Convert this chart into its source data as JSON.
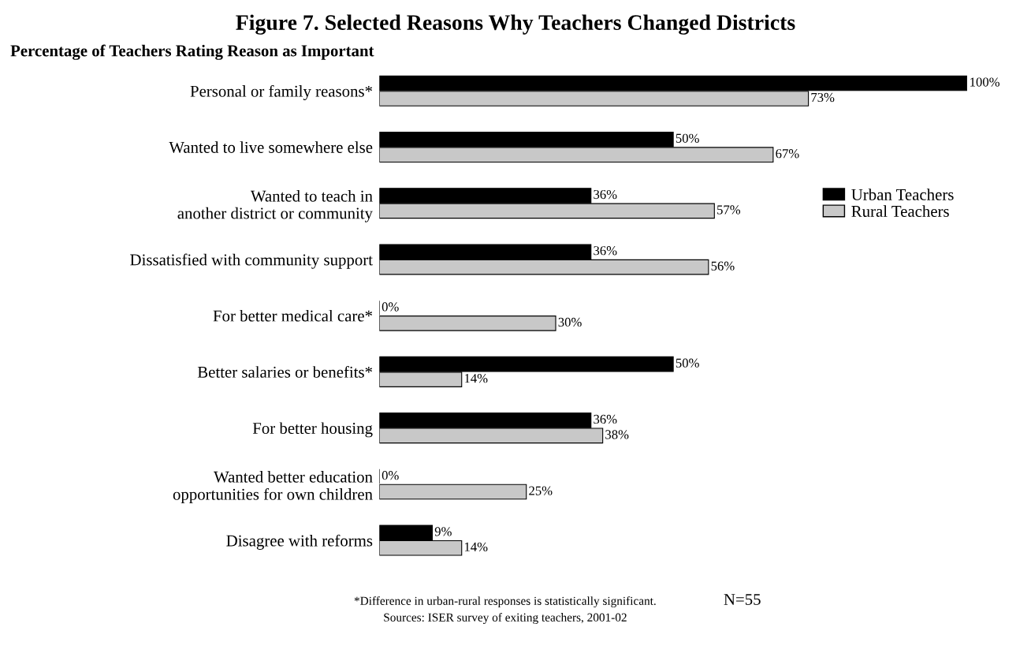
{
  "chart_data": {
    "type": "bar",
    "orientation": "horizontal",
    "title": "Figure 7. Selected Reasons Why Teachers Changed Districts",
    "subtitle": "Percentage of Teachers Rating Reason as Important",
    "categories": [
      "Personal or family reasons*",
      "Wanted to live somewhere else",
      "Wanted to teach in\nanother district or community",
      "Dissatisfied with community support",
      "For better medical care*",
      "Better salaries or benefits*",
      "For better housing",
      "Wanted better education\nopportunities for own children",
      "Disagree with reforms"
    ],
    "series": [
      {
        "name": "Urban Teachers",
        "color": "#000000",
        "values": [
          100,
          50,
          36,
          36,
          0,
          50,
          36,
          0,
          9
        ],
        "value_labels": [
          "100%",
          "50%",
          "36%",
          "36%",
          "0%",
          "50%",
          "36%",
          "0%",
          "9%"
        ]
      },
      {
        "name": "Rural Teachers",
        "color": "#c8c8c8",
        "values": [
          73,
          67,
          57,
          56,
          30,
          14,
          38,
          25,
          14
        ],
        "value_labels": [
          "73%",
          "67%",
          "57%",
          "56%",
          "30%",
          "14%",
          "38%",
          "25%",
          "14%"
        ]
      }
    ],
    "legend": "right",
    "annotations": [
      "*Difference in urban-rural responses is statistically significant.",
      "Sources: ISER survey of exiting teachers, 2001-02",
      "N=55"
    ]
  }
}
